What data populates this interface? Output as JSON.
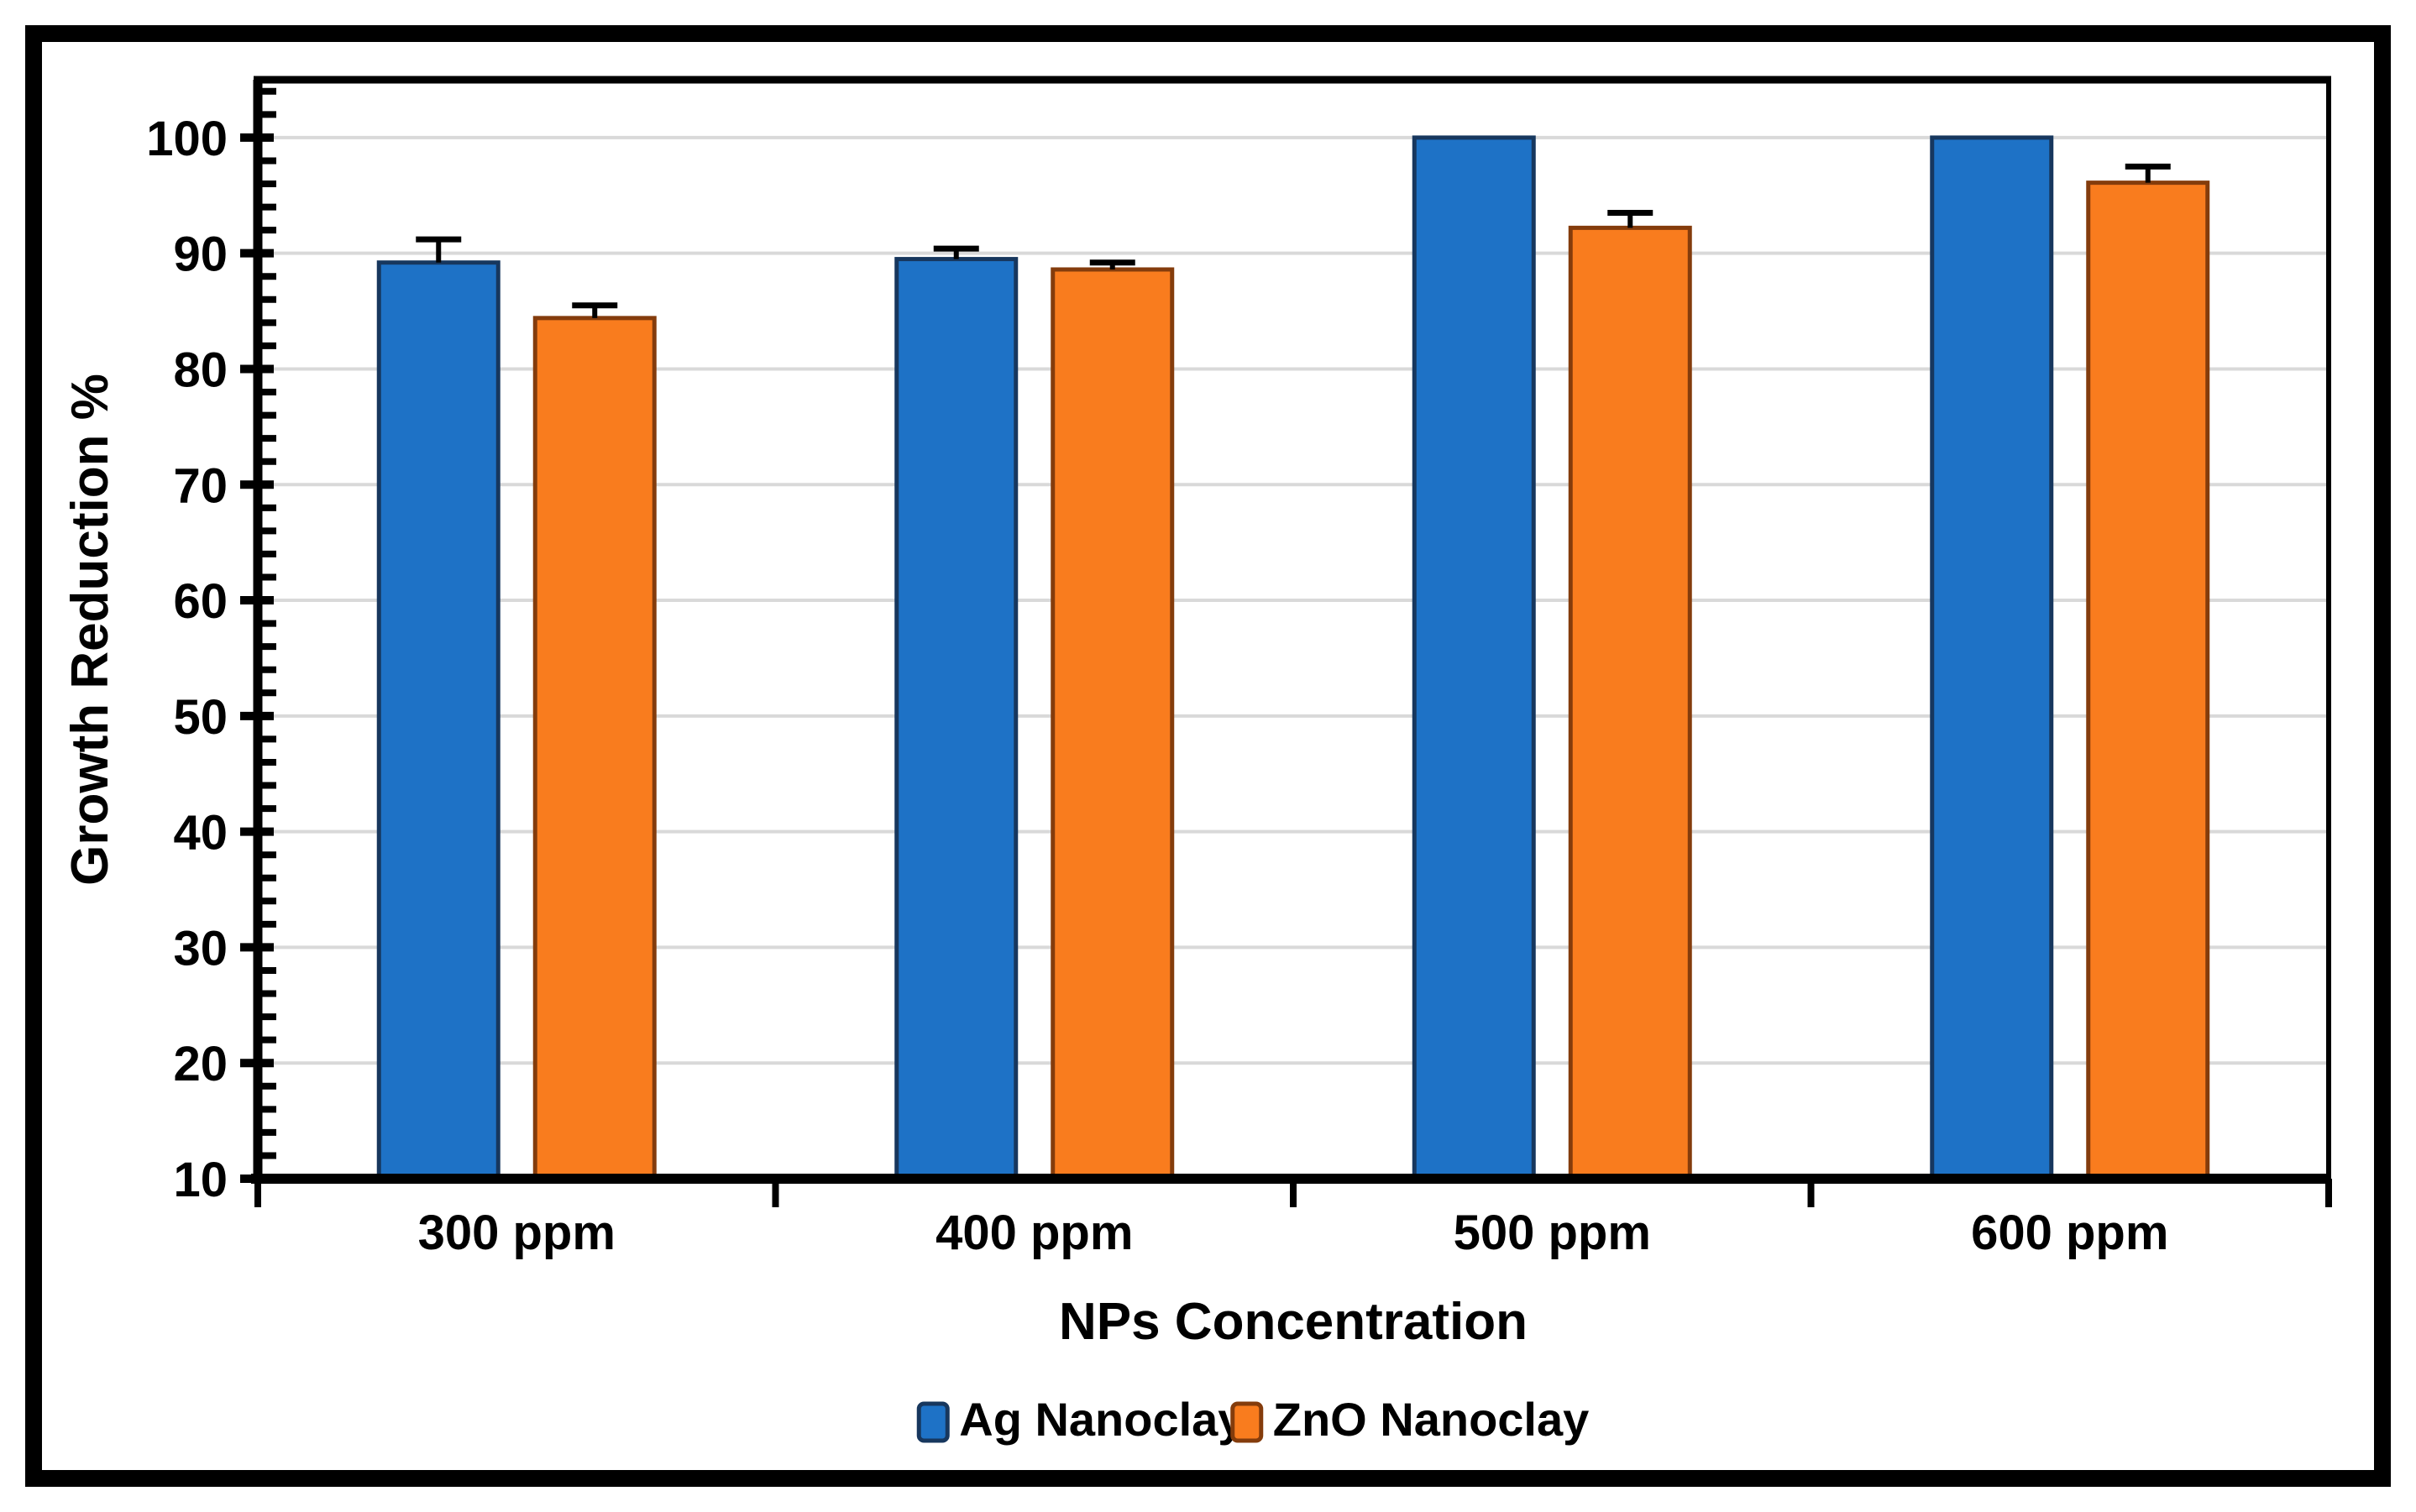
{
  "chart_data": {
    "type": "bar",
    "title": "",
    "categories": [
      "300 ppm",
      "400 ppm",
      "500 ppm",
      "600 ppm"
    ],
    "series": [
      {
        "name": "Ag Nanoclay",
        "color": "#1E72C6",
        "border_color": "#17375E",
        "values": [
          89.2,
          89.5,
          100,
          100
        ],
        "errors_plus": [
          2.0,
          0.9,
          0,
          0
        ]
      },
      {
        "name": "ZnO Nanoclay",
        "color": "#F97C1E",
        "border_color": "#843C0C",
        "values": [
          84.4,
          88.6,
          92.2,
          96.1
        ],
        "errors_plus": [
          1.1,
          0.6,
          1.3,
          1.4
        ]
      }
    ],
    "xlabel": "NPs Concentration",
    "ylabel": "Growth Reduction %",
    "ylim": [
      10,
      105
    ],
    "yticks": [
      10,
      20,
      30,
      40,
      50,
      60,
      70,
      80,
      90,
      100
    ],
    "minor_tick_step": 2,
    "grid": "horizontal-major",
    "legend_position": "bottom-center",
    "error_bar_style": "plus-cap",
    "colors": {
      "gridline": "#D9D9D9",
      "axis": "#000000",
      "error_bar": "#000000",
      "frame": "#000000",
      "background": "#FFFFFF"
    }
  }
}
